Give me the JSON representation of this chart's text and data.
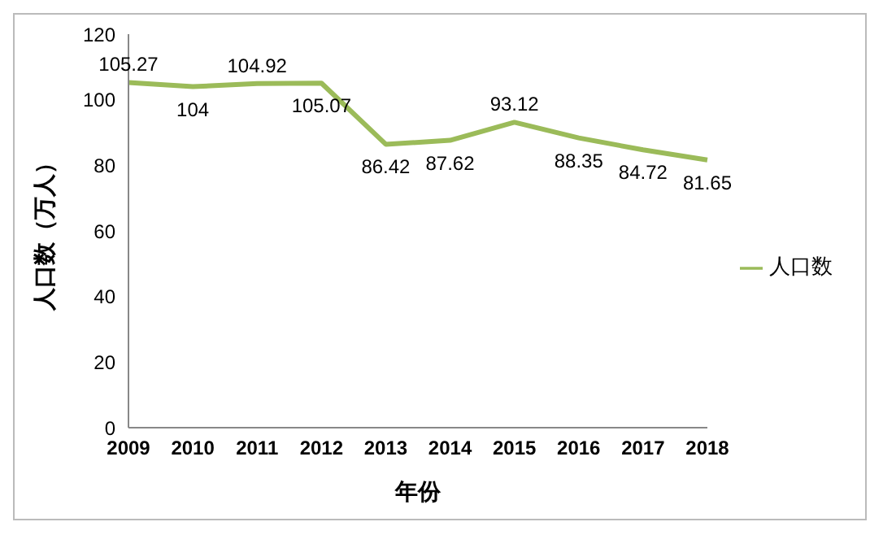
{
  "chart_data": {
    "type": "line",
    "xlabel": "年份",
    "ylabel": "人口数（万人）",
    "categories": [
      "2009",
      "2010",
      "2011",
      "2012",
      "2013",
      "2014",
      "2015",
      "2016",
      "2017",
      "2018"
    ],
    "series": [
      {
        "name": "人口数",
        "color": "#9bbb59",
        "values": [
          105.27,
          104,
          104.92,
          105.07,
          86.42,
          87.62,
          93.12,
          88.35,
          84.72,
          81.65
        ]
      }
    ],
    "ylim": [
      0,
      120
    ],
    "yticks": [
      0,
      20,
      40,
      60,
      80,
      100,
      120
    ],
    "grid": false,
    "legend": "right",
    "marker": "none",
    "line_style": "solid",
    "data_labels": true
  }
}
